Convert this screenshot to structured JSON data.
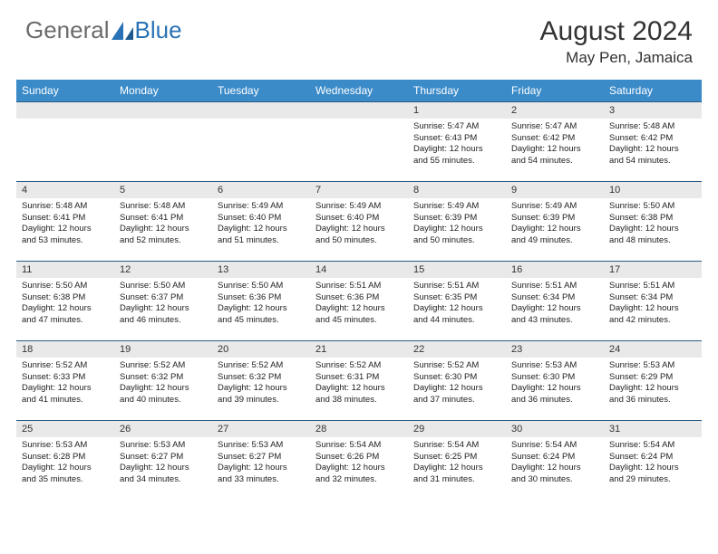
{
  "logo": {
    "text1": "General",
    "text2": "Blue"
  },
  "title": "August 2024",
  "location": "May Pen, Jamaica",
  "colors": {
    "header_bg": "#3b8bc9",
    "header_text": "#ffffff",
    "daynum_bg": "#e9e9e9",
    "row_border": "#2a5b86",
    "logo_gray": "#6b6b6b",
    "logo_blue": "#2a72b5"
  },
  "day_headers": [
    "Sunday",
    "Monday",
    "Tuesday",
    "Wednesday",
    "Thursday",
    "Friday",
    "Saturday"
  ],
  "cells": [
    {
      "n": "",
      "sr": "",
      "ss": "",
      "dl1": "",
      "dl2": ""
    },
    {
      "n": "",
      "sr": "",
      "ss": "",
      "dl1": "",
      "dl2": ""
    },
    {
      "n": "",
      "sr": "",
      "ss": "",
      "dl1": "",
      "dl2": ""
    },
    {
      "n": "",
      "sr": "",
      "ss": "",
      "dl1": "",
      "dl2": ""
    },
    {
      "n": "1",
      "sr": "Sunrise: 5:47 AM",
      "ss": "Sunset: 6:43 PM",
      "dl1": "Daylight: 12 hours",
      "dl2": "and 55 minutes."
    },
    {
      "n": "2",
      "sr": "Sunrise: 5:47 AM",
      "ss": "Sunset: 6:42 PM",
      "dl1": "Daylight: 12 hours",
      "dl2": "and 54 minutes."
    },
    {
      "n": "3",
      "sr": "Sunrise: 5:48 AM",
      "ss": "Sunset: 6:42 PM",
      "dl1": "Daylight: 12 hours",
      "dl2": "and 54 minutes."
    },
    {
      "n": "4",
      "sr": "Sunrise: 5:48 AM",
      "ss": "Sunset: 6:41 PM",
      "dl1": "Daylight: 12 hours",
      "dl2": "and 53 minutes."
    },
    {
      "n": "5",
      "sr": "Sunrise: 5:48 AM",
      "ss": "Sunset: 6:41 PM",
      "dl1": "Daylight: 12 hours",
      "dl2": "and 52 minutes."
    },
    {
      "n": "6",
      "sr": "Sunrise: 5:49 AM",
      "ss": "Sunset: 6:40 PM",
      "dl1": "Daylight: 12 hours",
      "dl2": "and 51 minutes."
    },
    {
      "n": "7",
      "sr": "Sunrise: 5:49 AM",
      "ss": "Sunset: 6:40 PM",
      "dl1": "Daylight: 12 hours",
      "dl2": "and 50 minutes."
    },
    {
      "n": "8",
      "sr": "Sunrise: 5:49 AM",
      "ss": "Sunset: 6:39 PM",
      "dl1": "Daylight: 12 hours",
      "dl2": "and 50 minutes."
    },
    {
      "n": "9",
      "sr": "Sunrise: 5:49 AM",
      "ss": "Sunset: 6:39 PM",
      "dl1": "Daylight: 12 hours",
      "dl2": "and 49 minutes."
    },
    {
      "n": "10",
      "sr": "Sunrise: 5:50 AM",
      "ss": "Sunset: 6:38 PM",
      "dl1": "Daylight: 12 hours",
      "dl2": "and 48 minutes."
    },
    {
      "n": "11",
      "sr": "Sunrise: 5:50 AM",
      "ss": "Sunset: 6:38 PM",
      "dl1": "Daylight: 12 hours",
      "dl2": "and 47 minutes."
    },
    {
      "n": "12",
      "sr": "Sunrise: 5:50 AM",
      "ss": "Sunset: 6:37 PM",
      "dl1": "Daylight: 12 hours",
      "dl2": "and 46 minutes."
    },
    {
      "n": "13",
      "sr": "Sunrise: 5:50 AM",
      "ss": "Sunset: 6:36 PM",
      "dl1": "Daylight: 12 hours",
      "dl2": "and 45 minutes."
    },
    {
      "n": "14",
      "sr": "Sunrise: 5:51 AM",
      "ss": "Sunset: 6:36 PM",
      "dl1": "Daylight: 12 hours",
      "dl2": "and 45 minutes."
    },
    {
      "n": "15",
      "sr": "Sunrise: 5:51 AM",
      "ss": "Sunset: 6:35 PM",
      "dl1": "Daylight: 12 hours",
      "dl2": "and 44 minutes."
    },
    {
      "n": "16",
      "sr": "Sunrise: 5:51 AM",
      "ss": "Sunset: 6:34 PM",
      "dl1": "Daylight: 12 hours",
      "dl2": "and 43 minutes."
    },
    {
      "n": "17",
      "sr": "Sunrise: 5:51 AM",
      "ss": "Sunset: 6:34 PM",
      "dl1": "Daylight: 12 hours",
      "dl2": "and 42 minutes."
    },
    {
      "n": "18",
      "sr": "Sunrise: 5:52 AM",
      "ss": "Sunset: 6:33 PM",
      "dl1": "Daylight: 12 hours",
      "dl2": "and 41 minutes."
    },
    {
      "n": "19",
      "sr": "Sunrise: 5:52 AM",
      "ss": "Sunset: 6:32 PM",
      "dl1": "Daylight: 12 hours",
      "dl2": "and 40 minutes."
    },
    {
      "n": "20",
      "sr": "Sunrise: 5:52 AM",
      "ss": "Sunset: 6:32 PM",
      "dl1": "Daylight: 12 hours",
      "dl2": "and 39 minutes."
    },
    {
      "n": "21",
      "sr": "Sunrise: 5:52 AM",
      "ss": "Sunset: 6:31 PM",
      "dl1": "Daylight: 12 hours",
      "dl2": "and 38 minutes."
    },
    {
      "n": "22",
      "sr": "Sunrise: 5:52 AM",
      "ss": "Sunset: 6:30 PM",
      "dl1": "Daylight: 12 hours",
      "dl2": "and 37 minutes."
    },
    {
      "n": "23",
      "sr": "Sunrise: 5:53 AM",
      "ss": "Sunset: 6:30 PM",
      "dl1": "Daylight: 12 hours",
      "dl2": "and 36 minutes."
    },
    {
      "n": "24",
      "sr": "Sunrise: 5:53 AM",
      "ss": "Sunset: 6:29 PM",
      "dl1": "Daylight: 12 hours",
      "dl2": "and 36 minutes."
    },
    {
      "n": "25",
      "sr": "Sunrise: 5:53 AM",
      "ss": "Sunset: 6:28 PM",
      "dl1": "Daylight: 12 hours",
      "dl2": "and 35 minutes."
    },
    {
      "n": "26",
      "sr": "Sunrise: 5:53 AM",
      "ss": "Sunset: 6:27 PM",
      "dl1": "Daylight: 12 hours",
      "dl2": "and 34 minutes."
    },
    {
      "n": "27",
      "sr": "Sunrise: 5:53 AM",
      "ss": "Sunset: 6:27 PM",
      "dl1": "Daylight: 12 hours",
      "dl2": "and 33 minutes."
    },
    {
      "n": "28",
      "sr": "Sunrise: 5:54 AM",
      "ss": "Sunset: 6:26 PM",
      "dl1": "Daylight: 12 hours",
      "dl2": "and 32 minutes."
    },
    {
      "n": "29",
      "sr": "Sunrise: 5:54 AM",
      "ss": "Sunset: 6:25 PM",
      "dl1": "Daylight: 12 hours",
      "dl2": "and 31 minutes."
    },
    {
      "n": "30",
      "sr": "Sunrise: 5:54 AM",
      "ss": "Sunset: 6:24 PM",
      "dl1": "Daylight: 12 hours",
      "dl2": "and 30 minutes."
    },
    {
      "n": "31",
      "sr": "Sunrise: 5:54 AM",
      "ss": "Sunset: 6:24 PM",
      "dl1": "Daylight: 12 hours",
      "dl2": "and 29 minutes."
    }
  ]
}
